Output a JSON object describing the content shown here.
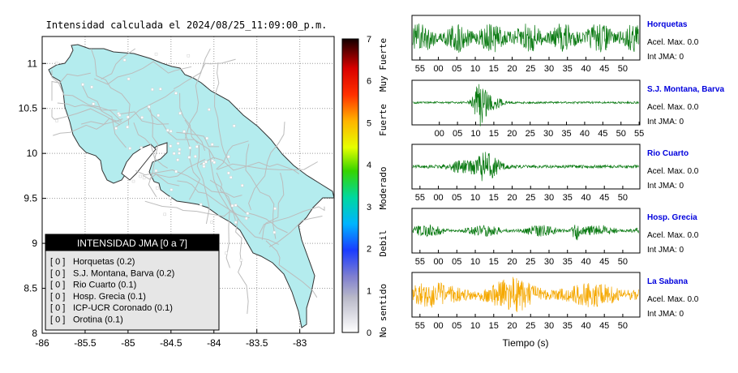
{
  "map": {
    "title": "Intensidad calculada el 2024/08/25_11:09:00_p.m.",
    "lon_ticks": [
      "-86",
      "-85.5",
      "-85",
      "-84.5",
      "-84",
      "-83.5",
      "-83"
    ],
    "lat_ticks": [
      "8",
      "8.5",
      "9",
      "9.5",
      "10",
      "10.5",
      "11"
    ],
    "colorbar": {
      "ticks": [
        "0",
        "1",
        "2",
        "3",
        "4",
        "5",
        "6",
        "7"
      ],
      "labels": [
        "No sentido",
        "Debil",
        "Moderado",
        "Fuerte",
        "Muy Fuerte"
      ]
    },
    "legend": {
      "title": "INTENSIDAD JMA [0 a 7]",
      "items": [
        {
          "code": "[ 0 ]",
          "name": "Horquetas (0.2)"
        },
        {
          "code": "[ 0 ]",
          "name": "S.J. Montana, Barva (0.2)"
        },
        {
          "code": "[ 0 ]",
          "name": "Rio Cuarto (0.1)"
        },
        {
          "code": "[ 0 ]",
          "name": "Hosp. Grecia (0.1)"
        },
        {
          "code": "[ 0 ]",
          "name": "ICP-UCR Coronado (0.1)"
        },
        {
          "code": "[ 0 ]",
          "name": "Orotina (0.1)"
        }
      ]
    },
    "colors": {
      "land": "#b4ecee",
      "roads": "#bcbcbc",
      "border": "#222222"
    }
  },
  "seismograms": {
    "xlabel": "Tiempo (s)",
    "panels": [
      {
        "station": "Horquetas",
        "accel": "Acel. Max. 0.0",
        "int": "Int JMA: 0",
        "ticks": [
          "55",
          "00",
          "05",
          "10",
          "15",
          "20",
          "25",
          "30",
          "35",
          "40",
          "45",
          "50"
        ],
        "color": "#0a7a12"
      },
      {
        "station": "S.J. Montana, Barva",
        "accel": "Acel. Max. 0.0",
        "int": "Int JMA: 0",
        "ticks": [
          "00",
          "05",
          "10",
          "15",
          "20",
          "25",
          "30",
          "35",
          "40",
          "45",
          "50",
          "55"
        ],
        "color": "#0a7a12"
      },
      {
        "station": "Rio Cuarto",
        "accel": "Acel. Max. 0.0",
        "int": "Int JMA: 0",
        "ticks": [
          "55",
          "00",
          "05",
          "10",
          "15",
          "20",
          "25",
          "30",
          "35",
          "40",
          "45",
          "50"
        ],
        "color": "#0a7a12"
      },
      {
        "station": "Hosp. Grecia",
        "accel": "Acel. Max. 0.0",
        "int": "Int JMA: 0",
        "ticks": [
          "55",
          "00",
          "05",
          "10",
          "15",
          "20",
          "25",
          "30",
          "35",
          "40",
          "45",
          "50"
        ],
        "color": "#0a7a12"
      },
      {
        "station": "La Sabana",
        "accel": "Acel. Max. 0.0",
        "int": "Int JMA: 0",
        "ticks": [
          "55",
          "00",
          "05",
          "10",
          "15",
          "20",
          "25",
          "30",
          "35",
          "40",
          "45",
          "50"
        ],
        "color": "#f5a800"
      }
    ]
  },
  "chart_data": [
    {
      "type": "heatmap",
      "title": "Intensidad calculada el 2024/08/25_11:09:00_p.m.",
      "xlim": [
        -86,
        -82.6
      ],
      "ylim": [
        8,
        11.3
      ],
      "x_ticks": [
        -86,
        -85.5,
        -85,
        -84.5,
        -84,
        -83.5,
        -83
      ],
      "y_ticks": [
        8,
        8.5,
        9,
        9.5,
        10,
        10.5,
        11
      ],
      "colorbar_range": [
        0,
        7
      ],
      "stations": [
        {
          "name": "Horquetas",
          "jma_class": 0,
          "intensity": 0.2
        },
        {
          "name": "S.J. Montana, Barva",
          "jma_class": 0,
          "intensity": 0.2
        },
        {
          "name": "Rio Cuarto",
          "jma_class": 0,
          "intensity": 0.1
        },
        {
          "name": "Hosp. Grecia",
          "jma_class": 0,
          "intensity": 0.1
        },
        {
          "name": "ICP-UCR Coronado",
          "jma_class": 0,
          "intensity": 0.1
        },
        {
          "name": "Orotina",
          "jma_class": 0,
          "intensity": 0.1
        }
      ]
    },
    {
      "type": "line",
      "xlabel": "Tiempo (s)",
      "series": [
        {
          "name": "Horquetas",
          "peak_accel": 0.0,
          "jma": 0
        },
        {
          "name": "S.J. Montana, Barva",
          "peak_accel": 0.0,
          "jma": 0
        },
        {
          "name": "Rio Cuarto",
          "peak_accel": 0.0,
          "jma": 0
        },
        {
          "name": "Hosp. Grecia",
          "peak_accel": 0.0,
          "jma": 0
        },
        {
          "name": "La Sabana",
          "peak_accel": 0.0,
          "jma": 0
        }
      ]
    }
  ]
}
